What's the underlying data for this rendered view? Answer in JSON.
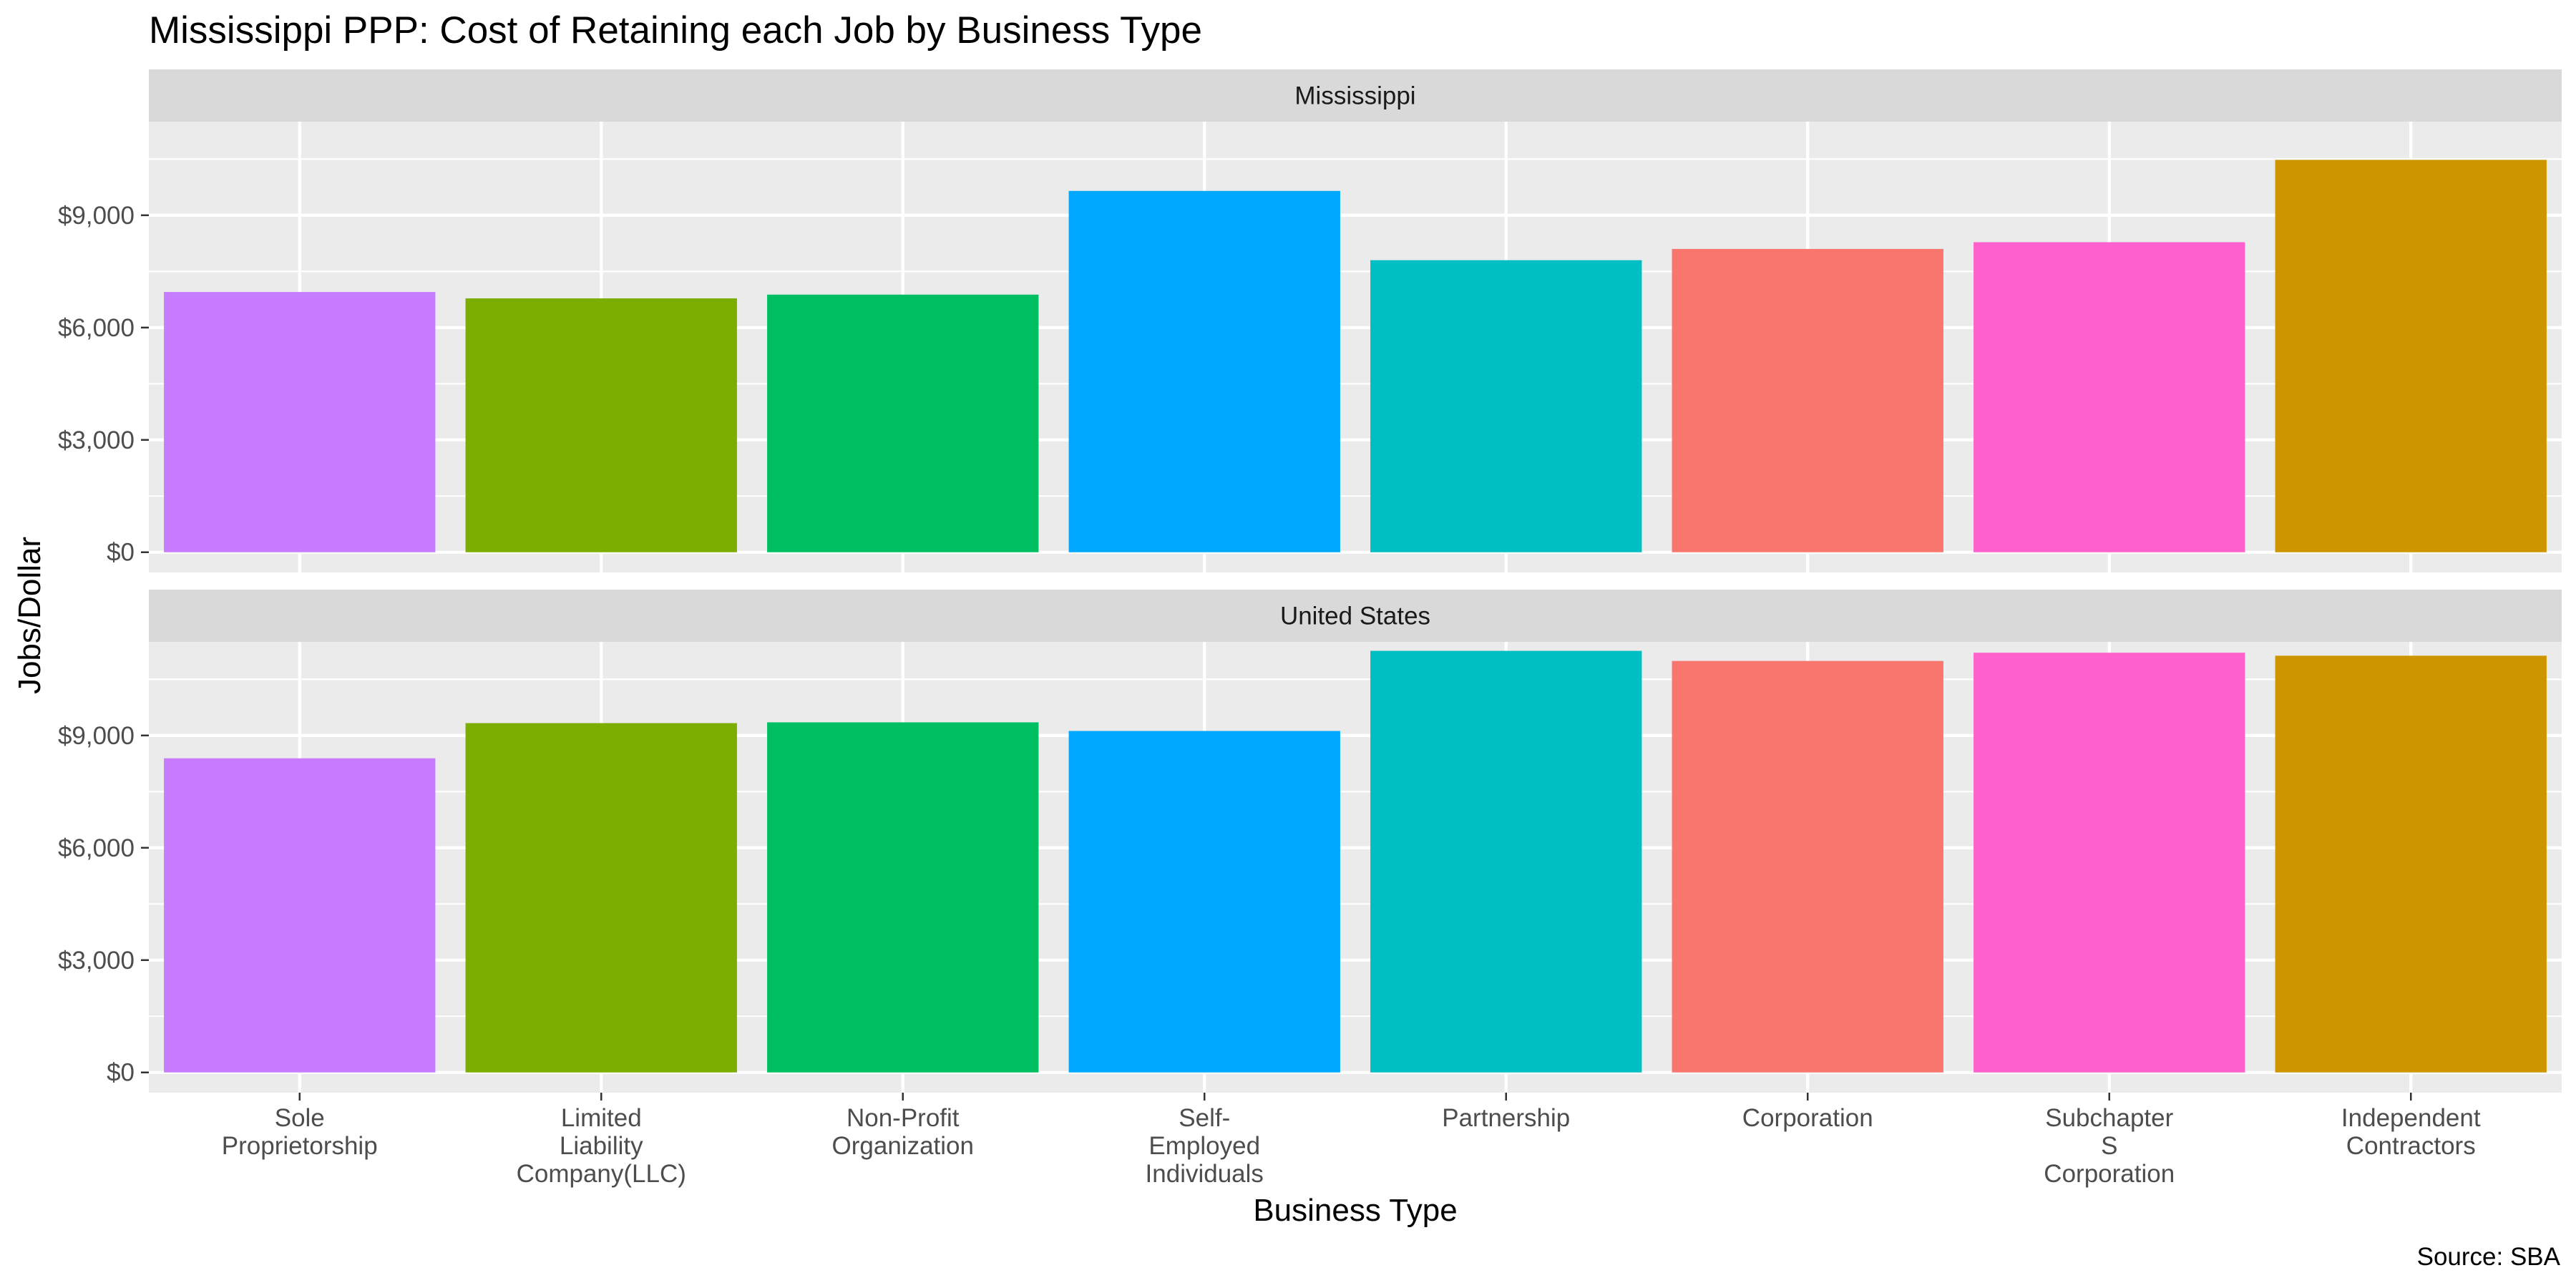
{
  "chart_data": {
    "type": "bar",
    "title": "Mississippi PPP: Cost of Retaining each Job by Business Type",
    "xlabel": "Business Type",
    "ylabel": "Jobs/Dollar",
    "caption": "Source: SBA",
    "facet_layout": "vertical",
    "grid": true,
    "legend": "none",
    "categories": [
      [
        "Sole",
        "Proprietorship"
      ],
      [
        "Limited",
        "Liability",
        "Company(LLC)"
      ],
      [
        "Non-Profit",
        "Organization"
      ],
      [
        "Self-",
        "Employed",
        "Individuals"
      ],
      [
        "Partnership"
      ],
      [
        "Corporation"
      ],
      [
        "Subchapter",
        "S",
        "Corporation"
      ],
      [
        "Independent",
        "Contractors"
      ]
    ],
    "colors": [
      "#C77CFF",
      "#7CAE00",
      "#00BF63",
      "#00A9FF",
      "#00BFC4",
      "#F8766D",
      "#FF61CC",
      "#CD9600"
    ],
    "yticks": [
      0,
      3000,
      6000,
      9000
    ],
    "ytick_labels": [
      "$0",
      "$3,000",
      "$6,000",
      "$9,000"
    ],
    "ylim": [
      -540,
      11500
    ],
    "panels": [
      {
        "label": "Mississippi",
        "values": [
          6950,
          6780,
          6880,
          9650,
          7800,
          8100,
          8280,
          10480
        ]
      },
      {
        "label": "United States",
        "values": [
          8390,
          9330,
          9350,
          9120,
          11260,
          10990,
          11210,
          11130
        ]
      }
    ]
  }
}
